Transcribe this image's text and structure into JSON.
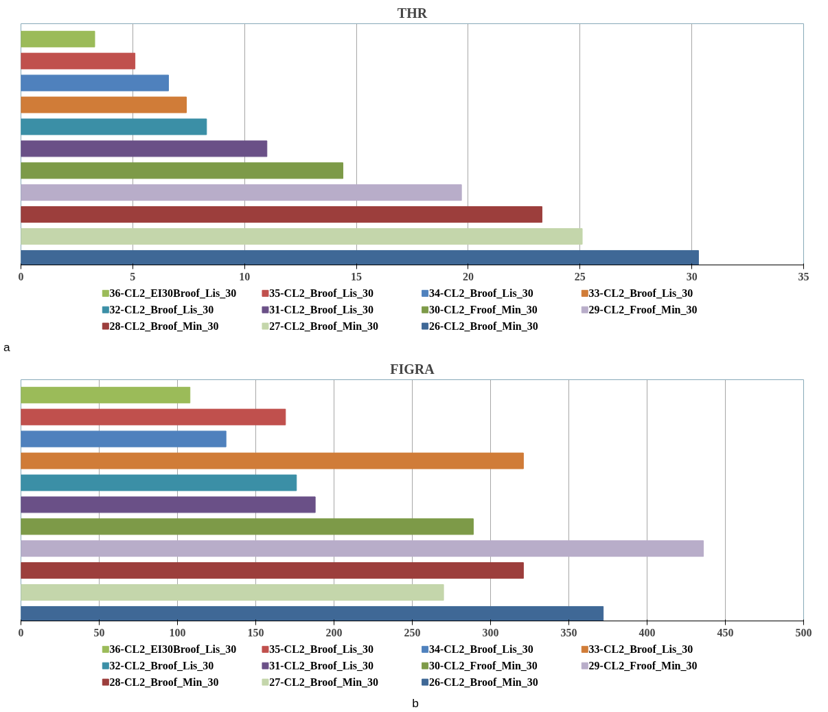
{
  "chart_data": [
    {
      "type": "bar",
      "orientation": "horizontal",
      "title": "THR",
      "categories": [
        null
      ],
      "series": [
        {
          "name": "36-CL2_EI30Broof_Lis_30",
          "color": "#9bbb59",
          "values": [
            3.3
          ]
        },
        {
          "name": "35-CL2_Broof_Lis_30",
          "color": "#c0504d",
          "values": [
            5.1
          ]
        },
        {
          "name": "34-CL2_Broof_Lis_30",
          "color": "#4f81bd",
          "values": [
            6.6
          ]
        },
        {
          "name": "33-CL2_Broof_Lis_30",
          "color": "#d07c38",
          "values": [
            7.4
          ]
        },
        {
          "name": "32-CL2_Broof_Lis_30",
          "color": "#3b8fa6",
          "values": [
            8.3
          ]
        },
        {
          "name": "31-CL2_Broof_Lis_30",
          "color": "#6a5087",
          "values": [
            11.0
          ]
        },
        {
          "name": "30-CL2_Froof_Min_30",
          "color": "#7d9a48",
          "values": [
            14.4
          ]
        },
        {
          "name": "29-CL2_Froof_Min_30",
          "color": "#b8adc9",
          "values": [
            19.7
          ]
        },
        {
          "name": "28-CL2_Broof_Min_30",
          "color": "#9c3e3c",
          "values": [
            23.3
          ]
        },
        {
          "name": "27-CL2_Broof_Min_30",
          "color": "#c4d6ab",
          "values": [
            25.1
          ]
        },
        {
          "name": "26-CL2_Broof_Min_30",
          "color": "#3f6896",
          "values": [
            30.3
          ]
        }
      ],
      "xlim": [
        0,
        35
      ],
      "xticks": [
        0,
        5,
        10,
        15,
        20,
        25,
        30,
        35
      ],
      "grid": "x",
      "legend": "bottom",
      "tick_labels": "x",
      "annotations": [
        "a"
      ]
    },
    {
      "type": "bar",
      "orientation": "horizontal",
      "title": "FIGRA",
      "categories": [
        null
      ],
      "series": [
        {
          "name": "36-CL2_EI30Broof_Lis_30",
          "color": "#9bbb59",
          "values": [
            108
          ]
        },
        {
          "name": "35-CL2_Broof_Lis_30",
          "color": "#c0504d",
          "values": [
            169
          ]
        },
        {
          "name": "34-CL2_Broof_Lis_30",
          "color": "#4f81bd",
          "values": [
            131
          ]
        },
        {
          "name": "33-CL2_Broof_Lis_30",
          "color": "#d07c38",
          "values": [
            321
          ]
        },
        {
          "name": "32-CL2_Broof_Lis_30",
          "color": "#3b8fa6",
          "values": [
            176
          ]
        },
        {
          "name": "31-CL2_Broof_Lis_30",
          "color": "#6a5087",
          "values": [
            188
          ]
        },
        {
          "name": "30-CL2_Froof_Min_30",
          "color": "#7d9a48",
          "values": [
            289
          ]
        },
        {
          "name": "29-CL2_Froof_Min_30",
          "color": "#b8adc9",
          "values": [
            436
          ]
        },
        {
          "name": "28-CL2_Broof_Min_30",
          "color": "#9c3e3c",
          "values": [
            321
          ]
        },
        {
          "name": "27-CL2_Broof_Min_30",
          "color": "#c4d6ab",
          "values": [
            270
          ]
        },
        {
          "name": "26-CL2_Broof_Min_30",
          "color": "#3f6896",
          "values": [
            372
          ]
        }
      ],
      "xlim": [
        0,
        500
      ],
      "xticks": [
        0,
        50,
        100,
        150,
        200,
        250,
        300,
        350,
        400,
        450,
        500
      ],
      "grid": "x",
      "legend": "bottom",
      "tick_labels": "x",
      "annotations": [
        "b"
      ]
    }
  ]
}
